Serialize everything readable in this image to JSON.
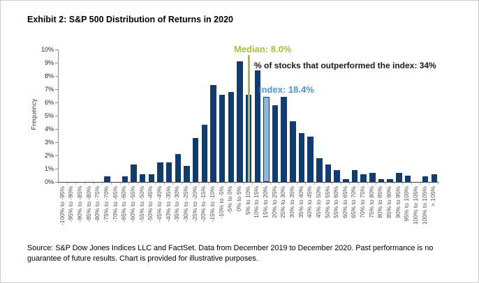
{
  "chart_data": {
    "type": "bar",
    "title": "Exhibit 2: S&P 500 Distribution of Returns in 2020",
    "ylabel": "Frequency",
    "xlabel": "",
    "ylim": [
      0,
      10
    ],
    "yticks": [
      0,
      1,
      2,
      3,
      4,
      5,
      6,
      7,
      8,
      9,
      10
    ],
    "ytick_suffix": "%",
    "grid": false,
    "legend": "none",
    "categories": [
      "-100% to -95%",
      "-95% to -90%",
      "-90% to -85%",
      "-85% to -80%",
      "-80% to -75%",
      "-75% to -70%",
      "-70% to -65%",
      "-65% to -60%",
      "-60% to -55%",
      "-55% to -50%",
      "-50% to -45%",
      "-45% to -40%",
      "-40% to -35%",
      "-35% to -30%",
      "-30% to -25%",
      "-25% to -20%",
      "-20% to -15%",
      "-15% to -10%",
      "-10% to -5%",
      "-5% to 0%",
      "0% to 5%",
      "5% to 10%",
      "10% to 15%",
      "15% to 20%",
      "20% to 25%",
      "25% to 30%",
      "30% to 35%",
      "35% to 40%",
      "40% to 45%",
      "45% to 50%",
      "50% to 55%",
      "55% to 60%",
      "60% to 65%",
      "65% to 70%",
      "70% to 75%",
      "75% to 80%",
      "80% to 85%",
      "85% to 90%",
      "90% to 95%",
      "95% to 100%",
      "100% to 105%",
      "100% to 105%",
      "> 105%"
    ],
    "values": [
      0,
      0,
      0,
      0,
      0,
      0.4,
      0,
      0.4,
      1.3,
      0.6,
      0.6,
      1.5,
      1.5,
      2.1,
      1.2,
      3.3,
      4.3,
      7.3,
      6.6,
      6.8,
      9.1,
      6.6,
      8.4,
      6.4,
      5.8,
      6.4,
      4.6,
      3.7,
      3.4,
      1.8,
      1.3,
      0.9,
      0.2,
      0.9,
      0.6,
      0.7,
      0.2,
      0.2,
      0.7,
      0.5,
      0,
      0.4,
      0.6
    ],
    "highlight": {
      "median_line_idx": 21,
      "median_line_category": "5% to 10%",
      "index_bar_idx": 23,
      "index_bar_category": "15% to 20%"
    },
    "annotations": {
      "median_label": "Median: 8.0%",
      "outperform_label": "% of stocks that outperformed the index: 34%",
      "index_label": "Index: 18.4%"
    },
    "colors": {
      "bar": "#133c6e",
      "index_bar_fill": "#8fb9dc",
      "index_bar_border": "#133c6e",
      "median_line": "#a3c13a",
      "median_text": "#a3c13a",
      "index_text": "#4e97c9",
      "outperform_text": "#1a1a1a"
    }
  },
  "source": {
    "text": "Source: S&P Dow Jones Indices LLC and FactSet. Data from December 2019 to December 2020. Past performance is no guarantee of future results. Chart is provided for illustrative purposes."
  }
}
